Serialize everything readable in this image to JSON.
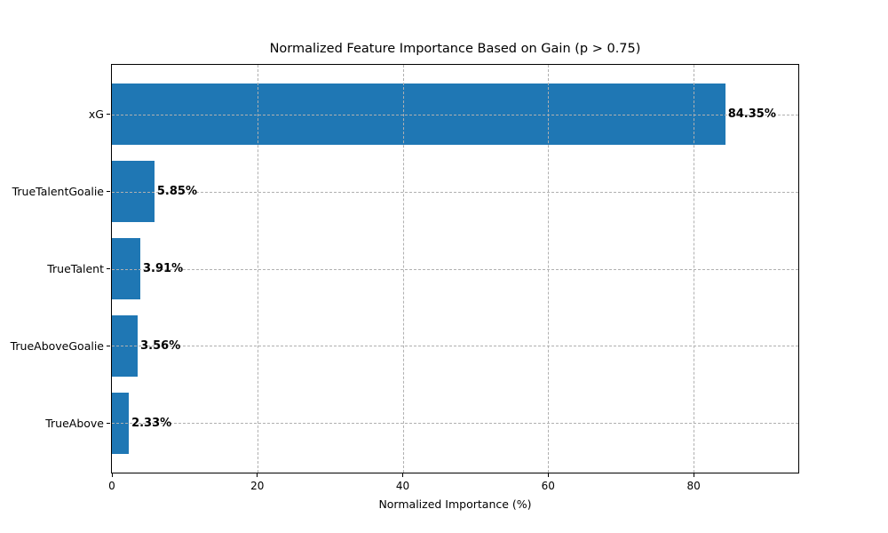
{
  "chart_data": {
    "type": "bar",
    "orientation": "horizontal",
    "title": "Normalized Feature Importance Based on Gain (p > 0.75)",
    "xlabel": "Normalized Importance (%)",
    "ylabel": "",
    "categories": [
      "xG",
      "TrueTalentGoalie",
      "TrueTalent",
      "TrueAboveGoalie",
      "TrueAbove"
    ],
    "values": [
      84.35,
      5.85,
      3.91,
      3.56,
      2.33
    ],
    "value_labels": [
      "84.35%",
      "5.85%",
      "3.91%",
      "3.56%",
      "2.33%"
    ],
    "xticks": [
      0,
      20,
      40,
      60,
      80
    ],
    "xtick_labels": [
      "0",
      "20",
      "40",
      "60",
      "80"
    ],
    "xlim": [
      0,
      94.4
    ],
    "ylim_units": [
      -0.64,
      4.64
    ],
    "bar_thickness_units": 0.8,
    "bar_color": "#1f77b4",
    "grid": true,
    "grid_color": "#b0b0b0",
    "grid_style": "dashed",
    "axis_color": "#000000",
    "text_color": "#000000",
    "legend": "none",
    "background_color": "#ffffff"
  }
}
